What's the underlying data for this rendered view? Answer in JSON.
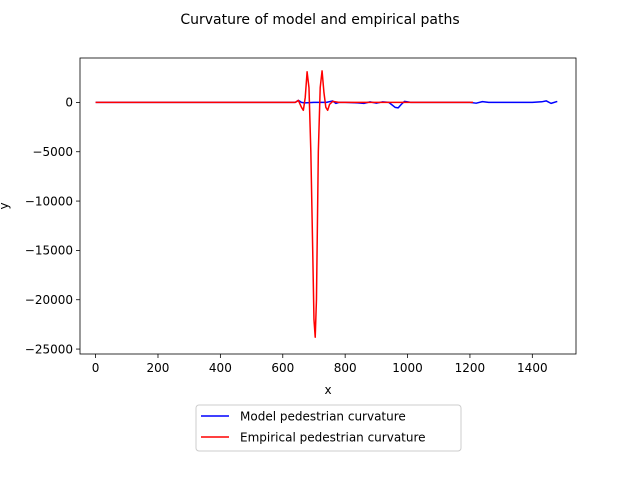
{
  "chart_data": {
    "type": "line",
    "title": "Curvature of model and empirical paths",
    "xlabel": "x",
    "ylabel": "y",
    "xlim": [
      -50,
      1540
    ],
    "ylim": [
      -25500,
      4500
    ],
    "xticks": [
      0,
      200,
      400,
      600,
      800,
      1000,
      1200,
      1400
    ],
    "yticks": [
      0,
      -5000,
      -10000,
      -15000,
      -20000,
      -25000
    ],
    "xtick_labels": [
      "0",
      "200",
      "400",
      "600",
      "800",
      "1000",
      "1200",
      "1400"
    ],
    "ytick_labels": [
      "0",
      "−5000",
      "−10000",
      "−15000",
      "−20000",
      "−25000"
    ],
    "grid": false,
    "legend_placement": "below plot, centered",
    "series": [
      {
        "name": "Model pedestrian curvature",
        "color": "#0000ff",
        "x": [
          0,
          600,
          640,
          650,
          660,
          670,
          700,
          740,
          760,
          770,
          780,
          800,
          840,
          860,
          880,
          900,
          920,
          940,
          960,
          970,
          980,
          990,
          1000,
          1010,
          1100,
          1200,
          1220,
          1240,
          1260,
          1300,
          1400,
          1430,
          1445,
          1460,
          1480
        ],
        "y": [
          0,
          0,
          0,
          200,
          0,
          -50,
          0,
          0,
          150,
          -100,
          0,
          0,
          -50,
          -100,
          50,
          -80,
          50,
          0,
          -500,
          -550,
          -200,
          100,
          50,
          0,
          0,
          0,
          -80,
          80,
          0,
          0,
          0,
          60,
          150,
          -100,
          100
        ]
      },
      {
        "name": "Empirical pedestrian curvature",
        "color": "#ff0000",
        "x": [
          0,
          600,
          640,
          650,
          660,
          666,
          672,
          678,
          684,
          690,
          696,
          700,
          704,
          708,
          714,
          720,
          726,
          732,
          738,
          744,
          750,
          760,
          780,
          800,
          1210
        ],
        "y": [
          0,
          0,
          0,
          200,
          -500,
          -800,
          500,
          3100,
          1500,
          -5000,
          -15000,
          -22000,
          -23800,
          -20000,
          -5000,
          1500,
          3200,
          1000,
          -500,
          -800,
          -200,
          100,
          0,
          0,
          0
        ]
      }
    ]
  }
}
